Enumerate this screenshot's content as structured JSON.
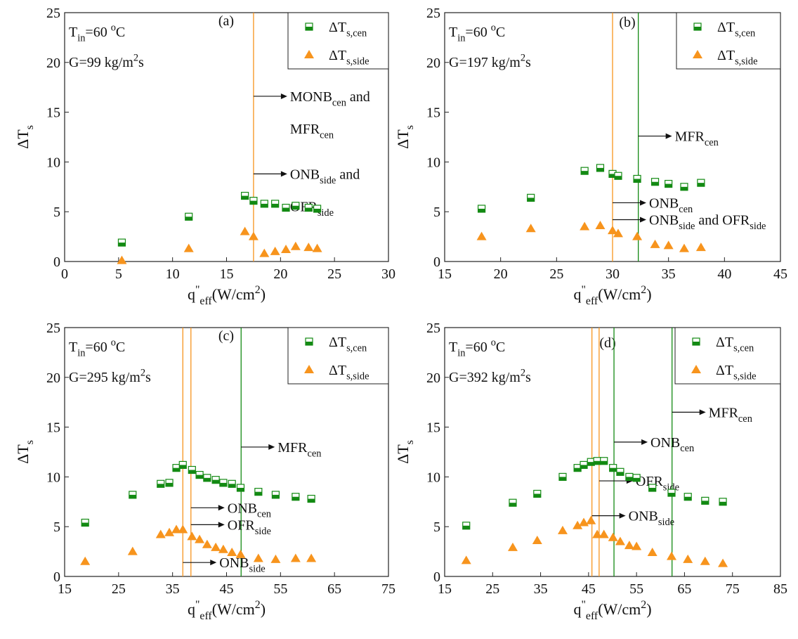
{
  "chart_data": [
    {
      "type": "scatter",
      "panel_label": "(a)",
      "legend": "upper right",
      "info": [
        [
          "T",
          {
            "sub": "in"
          },
          "=60 ",
          {
            "sup": "o"
          },
          "C"
        ],
        [
          "G=99 kg/m",
          {
            "sup": "2"
          },
          "s"
        ]
      ],
      "xlabel": [
        "q",
        {
          "sup": "\""
        },
        {
          "sub": "eff"
        },
        "(W/cm",
        {
          "sup": "2"
        },
        ")"
      ],
      "ylabel": [
        "ΔT",
        {
          "sub": "s"
        }
      ],
      "xlim": [
        0,
        30
      ],
      "ylim": [
        0,
        25
      ],
      "xticks": [
        0,
        5,
        10,
        15,
        20,
        25,
        30
      ],
      "yticks": [
        0,
        5,
        10,
        15,
        20,
        25
      ],
      "series": [
        {
          "name": [
            "ΔT",
            {
              "sub": "s,cen"
            }
          ],
          "color": "#138a13",
          "marker": "half-square",
          "x": [
            5.3,
            11.5,
            16.7,
            17.5,
            18.5,
            19.5,
            20.5,
            21.4,
            22.6,
            23.4
          ],
          "values": [
            1.9,
            4.5,
            6.6,
            6.1,
            5.8,
            5.8,
            5.4,
            5.6,
            5.4,
            5.3
          ]
        },
        {
          "name": [
            "ΔT",
            {
              "sub": "s,side"
            }
          ],
          "color": "#f7941d",
          "marker": "triangle",
          "x": [
            5.3,
            11.5,
            16.7,
            17.5,
            18.5,
            19.5,
            20.5,
            21.4,
            22.6,
            23.4
          ],
          "values": [
            0.1,
            1.3,
            3.0,
            2.5,
            0.8,
            1.0,
            1.2,
            1.5,
            1.4,
            1.3
          ]
        }
      ],
      "vlines": [
        {
          "x": 17.5,
          "color": "#f7941d"
        }
      ],
      "annotations": [
        {
          "x": 17.5,
          "y": 16.6,
          "lines": [
            [
              "MONB",
              {
                "sub": "cen"
              },
              " and"
            ],
            [
              "MFR",
              {
                "sub": "cen"
              }
            ]
          ]
        },
        {
          "x": 17.5,
          "y": 8.8,
          "lines": [
            [
              "ONB",
              {
                "sub": "side"
              },
              " and"
            ],
            [
              "OFR",
              {
                "sub": "side"
              }
            ]
          ]
        }
      ]
    },
    {
      "type": "scatter",
      "panel_label": "(b)",
      "legend": "upper right",
      "info": [
        [
          "T",
          {
            "sub": "in"
          },
          "=60 ",
          {
            "sup": "o"
          },
          "C"
        ],
        [
          "G=197 kg/m",
          {
            "sup": "2"
          },
          "s"
        ]
      ],
      "xlabel": [
        "q",
        {
          "sup": "\""
        },
        {
          "sub": "eff"
        },
        "(W/cm",
        {
          "sup": "2"
        },
        ")"
      ],
      "ylabel": [
        "ΔT",
        {
          "sub": "s"
        }
      ],
      "xlim": [
        15,
        45
      ],
      "ylim": [
        0,
        25
      ],
      "xticks": [
        15,
        20,
        25,
        30,
        35,
        40,
        45
      ],
      "yticks": [
        0,
        5,
        10,
        15,
        20,
        25
      ],
      "series": [
        {
          "name": [
            "ΔT",
            {
              "sub": "s,cen"
            }
          ],
          "color": "#138a13",
          "marker": "half-square",
          "x": [
            18.3,
            22.7,
            27.5,
            28.9,
            30.0,
            30.5,
            32.2,
            33.8,
            35.0,
            36.4,
            37.9
          ],
          "values": [
            5.3,
            6.4,
            9.1,
            9.4,
            8.8,
            8.6,
            8.3,
            8.0,
            7.8,
            7.5,
            7.9
          ]
        },
        {
          "name": [
            "ΔT",
            {
              "sub": "s,side"
            }
          ],
          "color": "#f7941d",
          "marker": "triangle",
          "x": [
            18.3,
            22.7,
            27.5,
            28.9,
            30.0,
            30.5,
            32.2,
            33.8,
            35.0,
            36.4,
            37.9
          ],
          "values": [
            2.5,
            3.3,
            3.5,
            3.6,
            3.1,
            2.8,
            2.5,
            1.7,
            1.6,
            1.3,
            1.4
          ]
        }
      ],
      "vlines": [
        {
          "x": 30.0,
          "color": "#f7941d"
        },
        {
          "x": 32.3,
          "color": "#138a13"
        }
      ],
      "annotations": [
        {
          "x": 32.3,
          "y": 12.6,
          "lines": [
            [
              "MFR",
              {
                "sub": "cen"
              }
            ]
          ]
        },
        {
          "x": 30.0,
          "y": 5.9,
          "lines": [
            [
              "ONB",
              {
                "sub": "cen"
              }
            ]
          ]
        },
        {
          "x": 30.0,
          "y": 4.2,
          "lines": [
            [
              "ONB",
              {
                "sub": "side"
              },
              " and OFR",
              {
                "sub": "side"
              }
            ]
          ]
        }
      ]
    },
    {
      "type": "scatter",
      "panel_label": "(c)",
      "legend": "upper right",
      "info": [
        [
          "T",
          {
            "sub": "in"
          },
          "=60 ",
          {
            "sup": "o"
          },
          "C"
        ],
        [
          "G=295 kg/m",
          {
            "sup": "2"
          },
          "s"
        ]
      ],
      "xlabel": [
        "q",
        {
          "sup": "\""
        },
        {
          "sub": "eff"
        },
        "(W/cm",
        {
          "sup": "2"
        },
        ")"
      ],
      "ylabel": [
        "ΔT",
        {
          "sub": "s"
        }
      ],
      "xlim": [
        15,
        75
      ],
      "ylim": [
        0,
        25
      ],
      "xticks": [
        15,
        25,
        35,
        45,
        55,
        65,
        75
      ],
      "yticks": [
        0,
        5,
        10,
        15,
        20,
        25
      ],
      "series": [
        {
          "name": [
            "ΔT",
            {
              "sub": "s,cen"
            }
          ],
          "color": "#138a13",
          "marker": "half-square",
          "x": [
            18.8,
            27.6,
            32.8,
            34.4,
            35.7,
            36.9,
            38.6,
            40.0,
            41.4,
            43.0,
            44.4,
            46.0,
            47.6,
            50.9,
            54.1,
            57.8,
            60.7
          ],
          "values": [
            5.4,
            8.2,
            9.3,
            9.4,
            10.9,
            11.2,
            10.7,
            10.2,
            9.9,
            9.7,
            9.4,
            9.3,
            8.9,
            8.5,
            8.2,
            8.0,
            7.8
          ]
        },
        {
          "name": [
            "ΔT",
            {
              "sub": "s,side"
            }
          ],
          "color": "#f7941d",
          "marker": "triangle",
          "x": [
            18.8,
            27.6,
            32.8,
            34.4,
            35.7,
            36.9,
            38.6,
            40.0,
            41.4,
            43.0,
            44.4,
            46.0,
            47.6,
            50.9,
            54.1,
            57.8,
            60.7
          ],
          "values": [
            1.5,
            2.5,
            4.2,
            4.4,
            4.7,
            4.7,
            4.0,
            3.7,
            3.2,
            2.9,
            2.7,
            2.4,
            2.2,
            1.8,
            1.7,
            1.8,
            1.8
          ]
        }
      ],
      "vlines": [
        {
          "x": 36.9,
          "color": "#f7941d"
        },
        {
          "x": 38.4,
          "color": "#f7941d"
        },
        {
          "x": 47.7,
          "color": "#138a13"
        }
      ],
      "annotations": [
        {
          "x": 47.7,
          "y": 13.0,
          "lines": [
            [
              "MFR",
              {
                "sub": "cen"
              }
            ]
          ]
        },
        {
          "x": 38.4,
          "y": 6.9,
          "lines": [
            [
              "ONB",
              {
                "sub": "cen"
              }
            ]
          ]
        },
        {
          "x": 38.4,
          "y": 5.2,
          "lines": [
            [
              "OFR",
              {
                "sub": "side"
              }
            ]
          ]
        },
        {
          "x": 36.9,
          "y": 1.4,
          "lines": [
            [
              "ONB",
              {
                "sub": "side"
              }
            ]
          ]
        }
      ]
    },
    {
      "type": "scatter",
      "panel_label": "(d)",
      "legend": "upper right",
      "info": [
        [
          "T",
          {
            "sub": "in"
          },
          "=60 ",
          {
            "sup": "o"
          },
          "C"
        ],
        [
          "G=392 kg/m",
          {
            "sup": "2"
          },
          "s"
        ]
      ],
      "xlabel": [
        "q",
        {
          "sup": "\""
        },
        {
          "sub": "eff"
        },
        "(W/cm",
        {
          "sup": "2"
        },
        ")"
      ],
      "ylabel": [
        "ΔT",
        {
          "sub": "s"
        }
      ],
      "xlim": [
        15,
        85
      ],
      "ylim": [
        0,
        25
      ],
      "xticks": [
        15,
        25,
        35,
        45,
        55,
        65,
        75,
        85
      ],
      "yticks": [
        0,
        5,
        10,
        15,
        20,
        25
      ],
      "series": [
        {
          "name": [
            "ΔT",
            {
              "sub": "s,cen"
            }
          ],
          "color": "#138a13",
          "marker": "half-square",
          "x": [
            19.5,
            29.2,
            34.3,
            39.6,
            42.7,
            44.0,
            45.5,
            46.8,
            48.2,
            50.1,
            51.6,
            53.5,
            55.0,
            58.3,
            62.3,
            65.7,
            69.3,
            73.0
          ],
          "values": [
            5.1,
            7.4,
            8.3,
            10.0,
            10.9,
            11.2,
            11.5,
            11.6,
            11.6,
            10.9,
            10.5,
            10.0,
            9.9,
            8.9,
            8.4,
            8.0,
            7.6,
            7.5
          ]
        },
        {
          "name": [
            "ΔT",
            {
              "sub": "s,side"
            }
          ],
          "color": "#f7941d",
          "marker": "triangle",
          "x": [
            19.5,
            29.2,
            34.3,
            39.6,
            42.7,
            44.0,
            45.5,
            46.8,
            48.2,
            50.1,
            51.6,
            53.5,
            55.0,
            58.3,
            62.3,
            65.7,
            69.3,
            73.0
          ],
          "values": [
            1.6,
            2.9,
            3.6,
            4.6,
            5.1,
            5.4,
            5.6,
            4.2,
            4.2,
            3.9,
            3.5,
            3.1,
            3.0,
            2.4,
            2.0,
            1.7,
            1.5,
            1.3
          ]
        }
      ],
      "vlines": [
        {
          "x": 45.7,
          "color": "#f7941d"
        },
        {
          "x": 47.2,
          "color": "#f7941d"
        },
        {
          "x": 50.3,
          "color": "#138a13"
        },
        {
          "x": 62.4,
          "color": "#138a13"
        }
      ],
      "annotations": [
        {
          "x": 62.4,
          "y": 16.5,
          "lines": [
            [
              "MFR",
              {
                "sub": "cen"
              }
            ]
          ]
        },
        {
          "x": 50.3,
          "y": 13.5,
          "lines": [
            [
              "ONB",
              {
                "sub": "cen"
              }
            ]
          ]
        },
        {
          "x": 47.2,
          "y": 9.6,
          "lines": [
            [
              "OFR",
              {
                "sub": "side"
              }
            ]
          ]
        },
        {
          "x": 45.7,
          "y": 6.1,
          "lines": [
            [
              "ONB",
              {
                "sub": "side"
              }
            ]
          ]
        }
      ]
    }
  ]
}
